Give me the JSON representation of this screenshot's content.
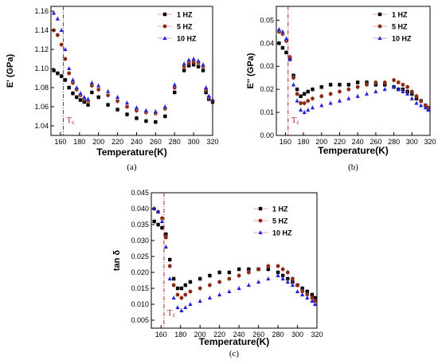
{
  "colors": {
    "series_1": "#000000",
    "series_5": "#8b2a10",
    "series_10": "#2222dd",
    "error_bar": "#e8a0c8",
    "tc_line": "#b22222",
    "tc_text": "#b22222"
  },
  "tc_marker_label": "Tc",
  "chart_data": [
    {
      "type": "scatter",
      "panel_label": "(a)",
      "xlabel": "Temperature(K)",
      "ylabel": "E' (GPa)",
      "xlim": [
        150,
        320
      ],
      "ylim": [
        1.03,
        1.165
      ],
      "xticks": [
        "160",
        "180",
        "200",
        "220",
        "240",
        "260",
        "280",
        "300",
        "320"
      ],
      "yticks": [
        "1.04",
        "1.06",
        "1.08",
        "1.10",
        "1.12",
        "1.14",
        "1.16"
      ],
      "tc_x": 163,
      "legend_position": "top-right",
      "series": [
        {
          "name": "1 HZ",
          "marker": "square",
          "x": [
            153,
            157,
            161,
            165,
            169,
            173,
            177,
            181,
            185,
            189,
            193,
            200,
            210,
            220,
            230,
            240,
            250,
            260,
            270,
            280,
            290,
            295,
            300,
            305,
            310,
            313,
            316,
            320
          ],
          "y": [
            1.098,
            1.095,
            1.092,
            1.088,
            1.08,
            1.074,
            1.07,
            1.067,
            1.065,
            1.062,
            1.075,
            1.07,
            1.062,
            1.057,
            1.052,
            1.048,
            1.045,
            1.044,
            1.05,
            1.075,
            1.098,
            1.103,
            1.104,
            1.102,
            1.098,
            1.075,
            1.068,
            1.065
          ]
        },
        {
          "name": "5 HZ",
          "marker": "circle",
          "x": [
            153,
            157,
            161,
            165,
            169,
            173,
            177,
            181,
            185,
            189,
            193,
            200,
            210,
            220,
            230,
            240,
            250,
            260,
            270,
            280,
            290,
            295,
            300,
            305,
            310,
            313,
            316,
            320
          ],
          "y": [
            1.14,
            1.135,
            1.125,
            1.11,
            1.095,
            1.085,
            1.078,
            1.072,
            1.068,
            1.066,
            1.082,
            1.078,
            1.072,
            1.066,
            1.06,
            1.056,
            1.054,
            1.053,
            1.058,
            1.08,
            1.102,
            1.106,
            1.107,
            1.106,
            1.102,
            1.078,
            1.07,
            1.066
          ]
        },
        {
          "name": "10 HZ",
          "marker": "triangle",
          "x": [
            153,
            157,
            161,
            165,
            169,
            173,
            177,
            181,
            185,
            189,
            193,
            200,
            210,
            220,
            230,
            240,
            250,
            260,
            270,
            280,
            290,
            295,
            300,
            305,
            310,
            313,
            316,
            320
          ],
          "y": [
            1.158,
            1.152,
            1.14,
            1.12,
            1.1,
            1.088,
            1.08,
            1.074,
            1.07,
            1.068,
            1.085,
            1.082,
            1.076,
            1.07,
            1.064,
            1.059,
            1.056,
            1.055,
            1.06,
            1.083,
            1.105,
            1.109,
            1.11,
            1.108,
            1.104,
            1.08,
            1.071,
            1.067
          ]
        }
      ]
    },
    {
      "type": "scatter",
      "panel_label": "(b)",
      "xlabel": "Temperature(K)",
      "ylabel": "E'' (GPa)",
      "xlim": [
        150,
        320
      ],
      "ylim": [
        0.0,
        0.056
      ],
      "xticks": [
        "160",
        "180",
        "200",
        "220",
        "240",
        "260",
        "280",
        "300",
        "320"
      ],
      "yticks": [
        "0.00",
        "0.01",
        "0.02",
        "0.03",
        "0.04",
        "0.05"
      ],
      "tc_x": 163,
      "legend_position": "top-right",
      "series": [
        {
          "name": "1 HZ",
          "marker": "square",
          "x": [
            153,
            157,
            161,
            165,
            169,
            173,
            177,
            181,
            185,
            190,
            200,
            210,
            220,
            230,
            240,
            250,
            260,
            270,
            280,
            285,
            290,
            295,
            300,
            305,
            310,
            315,
            318
          ],
          "y": [
            0.04,
            0.038,
            0.036,
            0.033,
            0.026,
            0.02,
            0.017,
            0.018,
            0.019,
            0.02,
            0.021,
            0.022,
            0.022,
            0.022,
            0.023,
            0.023,
            0.022,
            0.022,
            0.021,
            0.02,
            0.02,
            0.019,
            0.018,
            0.016,
            0.015,
            0.013,
            0.012
          ]
        },
        {
          "name": "5 HZ",
          "marker": "circle",
          "x": [
            153,
            157,
            161,
            165,
            169,
            173,
            177,
            181,
            185,
            190,
            200,
            210,
            220,
            230,
            240,
            250,
            260,
            270,
            280,
            285,
            290,
            295,
            300,
            305,
            310,
            315,
            318
          ],
          "y": [
            0.045,
            0.044,
            0.041,
            0.034,
            0.025,
            0.018,
            0.014,
            0.014,
            0.015,
            0.016,
            0.017,
            0.018,
            0.019,
            0.02,
            0.021,
            0.022,
            0.023,
            0.023,
            0.024,
            0.023,
            0.022,
            0.021,
            0.019,
            0.017,
            0.015,
            0.013,
            0.012
          ]
        },
        {
          "name": "10 HZ",
          "marker": "triangle",
          "x": [
            153,
            157,
            161,
            165,
            169,
            173,
            177,
            181,
            185,
            190,
            200,
            210,
            220,
            230,
            240,
            250,
            260,
            270,
            280,
            285,
            290,
            295,
            300,
            305,
            310,
            315,
            318
          ],
          "y": [
            0.046,
            0.045,
            0.042,
            0.033,
            0.022,
            0.015,
            0.011,
            0.01,
            0.011,
            0.012,
            0.013,
            0.014,
            0.015,
            0.016,
            0.017,
            0.018,
            0.019,
            0.02,
            0.021,
            0.02,
            0.019,
            0.018,
            0.016,
            0.014,
            0.013,
            0.012,
            0.011
          ]
        }
      ]
    },
    {
      "type": "scatter",
      "panel_label": "(c)",
      "xlabel": "Temperature(K)",
      "ylabel": "tan δ",
      "xlim": [
        150,
        320
      ],
      "ylim": [
        0.0025,
        0.045
      ],
      "xticks": [
        "160",
        "180",
        "200",
        "220",
        "240",
        "260",
        "280",
        "300",
        "320"
      ],
      "yticks": [
        "0.005",
        "0.010",
        "0.015",
        "0.020",
        "0.025",
        "0.030",
        "0.035",
        "0.040",
        "0.045"
      ],
      "tc_x": 163,
      "legend_position": "top-right",
      "series": [
        {
          "name": "1 HZ",
          "marker": "square",
          "x": [
            153,
            157,
            161,
            165,
            169,
            173,
            177,
            181,
            185,
            190,
            200,
            210,
            220,
            230,
            240,
            250,
            260,
            270,
            280,
            285,
            290,
            295,
            300,
            305,
            310,
            315,
            318
          ],
          "y": [
            0.036,
            0.035,
            0.034,
            0.032,
            0.024,
            0.018,
            0.015,
            0.015,
            0.016,
            0.017,
            0.018,
            0.019,
            0.02,
            0.02,
            0.021,
            0.021,
            0.021,
            0.021,
            0.02,
            0.019,
            0.018,
            0.017,
            0.016,
            0.015,
            0.014,
            0.013,
            0.012
          ]
        },
        {
          "name": "5 HZ",
          "marker": "circle",
          "x": [
            153,
            157,
            161,
            165,
            169,
            173,
            177,
            181,
            185,
            190,
            200,
            210,
            220,
            230,
            240,
            250,
            260,
            270,
            280,
            285,
            290,
            295,
            300,
            305,
            310,
            315,
            318
          ],
          "y": [
            0.04,
            0.039,
            0.037,
            0.031,
            0.022,
            0.016,
            0.013,
            0.012,
            0.013,
            0.014,
            0.015,
            0.016,
            0.017,
            0.018,
            0.019,
            0.02,
            0.021,
            0.022,
            0.022,
            0.021,
            0.02,
            0.018,
            0.016,
            0.014,
            0.013,
            0.012,
            0.011
          ]
        },
        {
          "name": "10 HZ",
          "marker": "triangle",
          "x": [
            153,
            157,
            161,
            165,
            169,
            173,
            177,
            181,
            185,
            190,
            200,
            210,
            220,
            230,
            240,
            250,
            260,
            270,
            280,
            285,
            290,
            295,
            300,
            305,
            310,
            315,
            318
          ],
          "y": [
            0.04,
            0.039,
            0.036,
            0.028,
            0.018,
            0.012,
            0.009,
            0.008,
            0.009,
            0.01,
            0.011,
            0.012,
            0.013,
            0.014,
            0.015,
            0.016,
            0.017,
            0.018,
            0.019,
            0.018,
            0.017,
            0.016,
            0.014,
            0.013,
            0.012,
            0.011,
            0.01
          ]
        }
      ]
    }
  ]
}
